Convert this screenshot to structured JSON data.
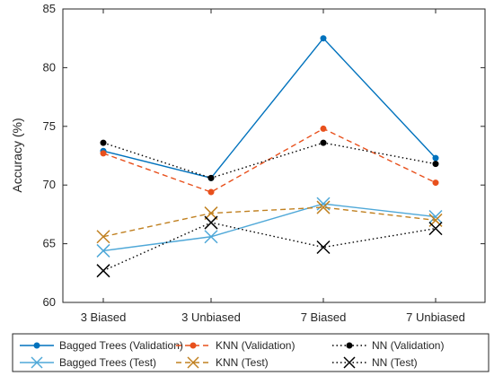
{
  "chart_data": {
    "type": "line",
    "ylabel": "Accuracy (%)",
    "xlabel": "",
    "categories": [
      "3 Biased",
      "3 Unbiased",
      "7 Biased",
      "7 Unbiased"
    ],
    "ylim": [
      60,
      85
    ],
    "yticks": [
      60,
      65,
      70,
      75,
      80,
      85
    ],
    "grid": false,
    "legend_position": "bottom",
    "series": [
      {
        "name": "Bagged Trees (Validation)",
        "values": [
          72.9,
          70.6,
          82.5,
          72.3
        ],
        "color": "#0072BD",
        "dash": "solid",
        "marker": "dot"
      },
      {
        "name": "Bagged Trees (Test)",
        "values": [
          64.4,
          65.6,
          68.4,
          67.3
        ],
        "color": "#4FA8D8",
        "dash": "solid",
        "marker": "x"
      },
      {
        "name": "KNN (Validation)",
        "values": [
          72.7,
          69.4,
          74.8,
          70.2
        ],
        "color": "#E8501C",
        "dash": "dashed",
        "marker": "dot"
      },
      {
        "name": "KNN (Test)",
        "values": [
          65.6,
          67.6,
          68.1,
          67.0
        ],
        "color": "#C08020",
        "dash": "dashed",
        "marker": "x"
      },
      {
        "name": "NN (Validation)",
        "values": [
          73.6,
          70.6,
          73.6,
          71.8
        ],
        "color": "#000000",
        "dash": "dotted",
        "marker": "dot"
      },
      {
        "name": "NN (Test)",
        "values": [
          62.7,
          66.8,
          64.7,
          66.3
        ],
        "color": "#000000",
        "dash": "dotted",
        "marker": "x"
      }
    ]
  }
}
